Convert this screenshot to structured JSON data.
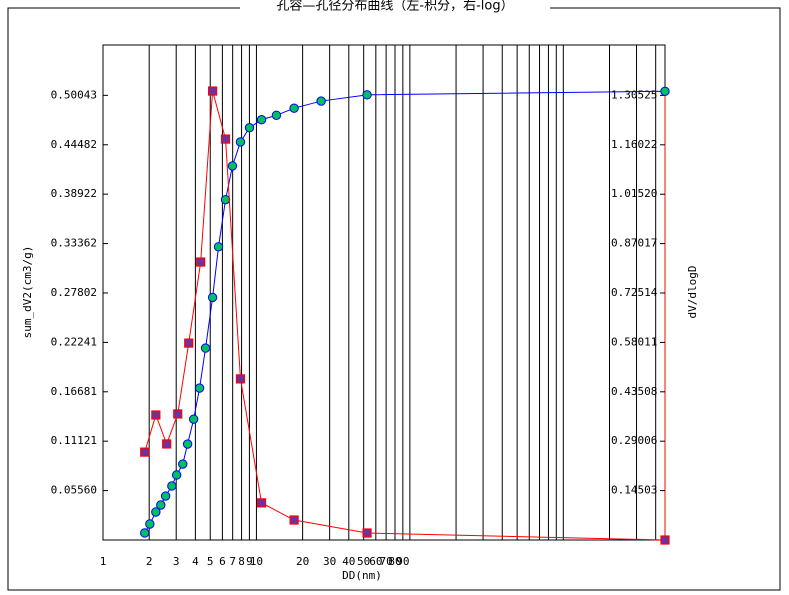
{
  "chart_data": {
    "type": "line",
    "title": "孔容—孔径分布曲线（左-积分，右-log）",
    "x_label": "DD(nm)",
    "y_label": "sum_dV2(cm3/g)",
    "y2_label": "dV/dlogD",
    "xscale": "log",
    "xlim": [
      1,
      4600
    ],
    "xticks": [
      1,
      2,
      3,
      4,
      5,
      6,
      7,
      8,
      9,
      10,
      20,
      30,
      40,
      50,
      60,
      70,
      80,
      90
    ],
    "xgrid": [
      100,
      200,
      300,
      400,
      500,
      600,
      700,
      800,
      900,
      1000,
      2000,
      3000,
      4000
    ],
    "ylim": [
      0,
      0.5571
    ],
    "yticks": [
      {
        "value": 0.0556,
        "label": "0.05560"
      },
      0.11121,
      0.16681,
      0.22241,
      0.27802,
      0.33362,
      0.38922,
      0.44482,
      0.50043
    ],
    "y2lim": [
      0,
      1.4532
    ],
    "y2ticks": [
      0.14503,
      0.29006,
      0.43508,
      0.58011,
      0.72514,
      0.87017,
      {
        "value": 1.0152,
        "label": "1.01520"
      },
      1.16022,
      1.30525
    ],
    "series": [
      {
        "name": "sum_dV2",
        "color": "#0000ff",
        "marker_color": "#00c060",
        "x": [
          1.87,
          2.02,
          2.21,
          2.38,
          2.56,
          2.81,
          3.02,
          3.31,
          3.56,
          3.9,
          4.26,
          4.66,
          5.18,
          5.66,
          6.29,
          6.98,
          7.87,
          9.01,
          10.8,
          13.5,
          17.6,
          26.4,
          52.6,
          4600
        ],
        "values": [
          0.0079,
          0.018,
          0.0315,
          0.0394,
          0.0495,
          0.0608,
          0.0732,
          0.0855,
          0.108,
          0.136,
          0.171,
          0.216,
          0.273,
          0.33,
          0.383,
          0.421,
          0.448,
          0.464,
          0.473,
          0.478,
          0.486,
          0.494,
          0.501,
          0.505
        ]
      },
      {
        "name": "dV/dlogD",
        "color": "#ff0000",
        "marker_color": "#7030a0",
        "axis": "y2",
        "x": [
          1.87,
          2.21,
          2.6,
          3.07,
          3.62,
          4.33,
          5.18,
          6.29,
          7.87,
          10.8,
          17.6,
          52.6,
          4600
        ],
        "values": [
          0.258,
          0.367,
          0.282,
          0.37,
          0.578,
          0.816,
          1.318,
          1.177,
          0.473,
          0.109,
          0.0587,
          0.0205,
          0
        ]
      }
    ]
  }
}
